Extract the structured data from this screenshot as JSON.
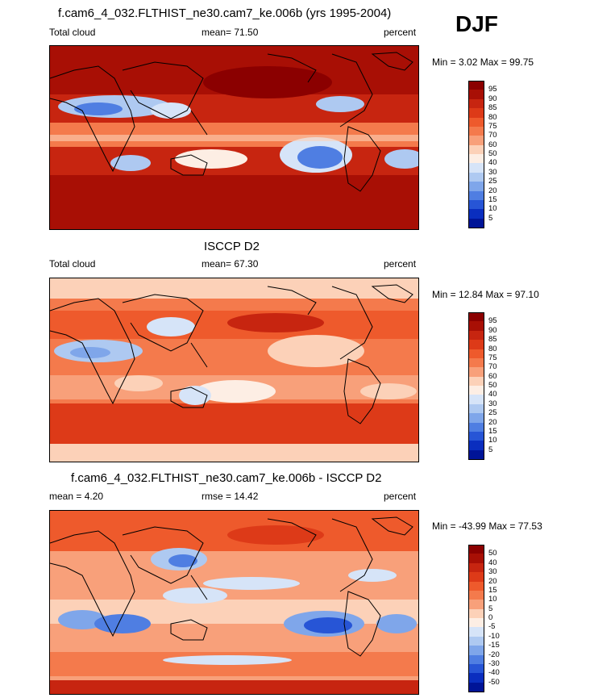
{
  "season": "DJF",
  "panels": [
    {
      "title": "f.cam6_4_032.FLTHIST_ne30.cam7_ke.006b (yrs 1995-2004)",
      "left_label": "Total cloud",
      "center_label": "mean=  71.50",
      "right_label": "percent",
      "minmax": "Min =   3.02 Max =  99.75",
      "colorbar": {
        "labels": [
          "95",
          "90",
          "85",
          "80",
          "75",
          "70",
          "60",
          "50",
          "40",
          "30",
          "25",
          "20",
          "15",
          "10",
          "5"
        ],
        "colors": [
          "#8b0000",
          "#a80f05",
          "#c72510",
          "#dd3a18",
          "#ee5a2c",
          "#f47a4c",
          "#f8a07a",
          "#fcd1b8",
          "#fdeee4",
          "#d6e4f8",
          "#aec9f1",
          "#7fa6ea",
          "#4f7ee2",
          "#2755d6",
          "#0a2ebf",
          "#001497"
        ]
      }
    },
    {
      "title": "ISCCP D2",
      "left_label": "Total cloud",
      "center_label": "mean=  67.30",
      "right_label": "percent",
      "minmax": "Min =  12.84 Max =  97.10",
      "colorbar": {
        "labels": [
          "95",
          "90",
          "85",
          "80",
          "75",
          "70",
          "60",
          "50",
          "40",
          "30",
          "25",
          "20",
          "15",
          "10",
          "5"
        ],
        "colors": [
          "#8b0000",
          "#a80f05",
          "#c72510",
          "#dd3a18",
          "#ee5a2c",
          "#f47a4c",
          "#f8a07a",
          "#fcd1b8",
          "#fdeee4",
          "#d6e4f8",
          "#aec9f1",
          "#7fa6ea",
          "#4f7ee2",
          "#2755d6",
          "#0a2ebf",
          "#001497"
        ]
      }
    },
    {
      "title": "f.cam6_4_032.FLTHIST_ne30.cam7_ke.006b - ISCCP D2",
      "left_label": "mean =   4.20",
      "center_label": "rmse =  14.42",
      "right_label": "percent",
      "minmax": "Min = -43.99 Max =  77.53",
      "colorbar": {
        "labels": [
          "50",
          "40",
          "30",
          "20",
          "15",
          "10",
          "5",
          "0",
          "-5",
          "-10",
          "-15",
          "-20",
          "-30",
          "-40",
          "-50"
        ],
        "colors": [
          "#8b0000",
          "#a80f05",
          "#c72510",
          "#dd3a18",
          "#ee5a2c",
          "#f47a4c",
          "#f8a07a",
          "#fcd1b8",
          "#fdeee4",
          "#d6e4f8",
          "#aec9f1",
          "#7fa6ea",
          "#4f7ee2",
          "#2755d6",
          "#0a2ebf",
          "#001497"
        ]
      }
    }
  ],
  "chart_data": [
    {
      "type": "heatmap",
      "title": "f.cam6_4_032.FLTHIST_ne30.cam7_ke.006b (yrs 1995-2004)",
      "variable": "Total cloud",
      "units": "percent",
      "mean": 71.5,
      "min": 3.02,
      "max": 99.75,
      "levels": [
        5,
        10,
        15,
        20,
        25,
        30,
        40,
        50,
        60,
        70,
        75,
        80,
        85,
        90,
        95
      ]
    },
    {
      "type": "heatmap",
      "title": "ISCCP D2",
      "variable": "Total cloud",
      "units": "percent",
      "mean": 67.3,
      "min": 12.84,
      "max": 97.1,
      "levels": [
        5,
        10,
        15,
        20,
        25,
        30,
        40,
        50,
        60,
        70,
        75,
        80,
        85,
        90,
        95
      ]
    },
    {
      "type": "heatmap",
      "title": "f.cam6_4_032.FLTHIST_ne30.cam7_ke.006b - ISCCP D2",
      "units": "percent",
      "mean": 4.2,
      "rmse": 14.42,
      "min": -43.99,
      "max": 77.53,
      "levels": [
        -50,
        -40,
        -30,
        -20,
        -15,
        -10,
        -5,
        0,
        5,
        10,
        15,
        20,
        30,
        40,
        50
      ]
    }
  ]
}
